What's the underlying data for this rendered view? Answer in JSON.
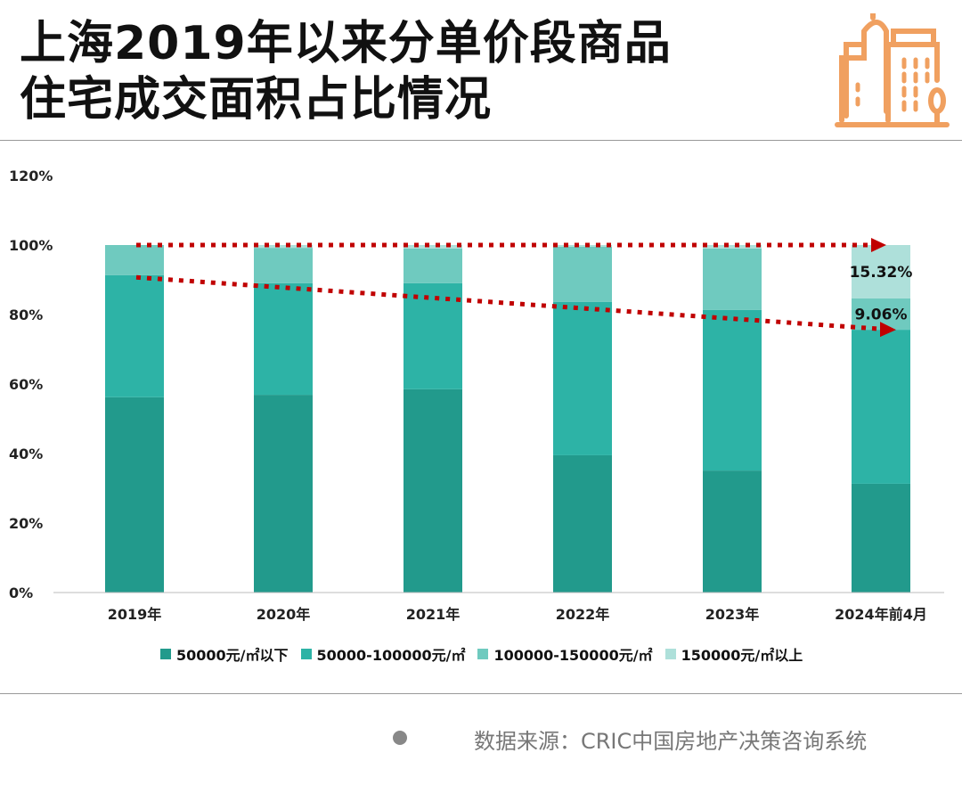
{
  "title_line1": "上海2019年以来分单价段商品",
  "title_line2": "住宅成交面积占比情况",
  "footer": "数据来源：CRIC中国房地产决策咨询系统",
  "chart_data": {
    "type": "bar",
    "stacked": true,
    "categories": [
      "2019年",
      "2020年",
      "2021年",
      "2022年",
      "2023年",
      "2024年前4月"
    ],
    "series": [
      {
        "name": "50000元/㎡以下",
        "color": "#229a8c",
        "values": [
          56.2,
          56.9,
          58.5,
          39.5,
          35.1,
          31.3
        ]
      },
      {
        "name": "50000-100000元/㎡",
        "color": "#2db3a6",
        "values": [
          35.1,
          32.1,
          30.5,
          44.1,
          46.2,
          44.32
        ]
      },
      {
        "name": "100000-150000元/㎡",
        "color": "#6fcabf",
        "values": [
          8.7,
          10.2,
          10.0,
          15.9,
          17.7,
          9.06
        ]
      },
      {
        "name": "150000元/㎡以上",
        "color": "#aee0da",
        "values": [
          0,
          0.8,
          1.0,
          0.5,
          1.0,
          15.32
        ]
      }
    ],
    "data_labels": [
      "15.32%",
      "9.06%"
    ],
    "yticks": [
      "0%",
      "20%",
      "40%",
      "60%",
      "80%",
      "100%",
      "120%"
    ],
    "ylim": [
      0,
      120
    ],
    "annotations": "two red dotted trend arrows",
    "legend": "bottom"
  }
}
